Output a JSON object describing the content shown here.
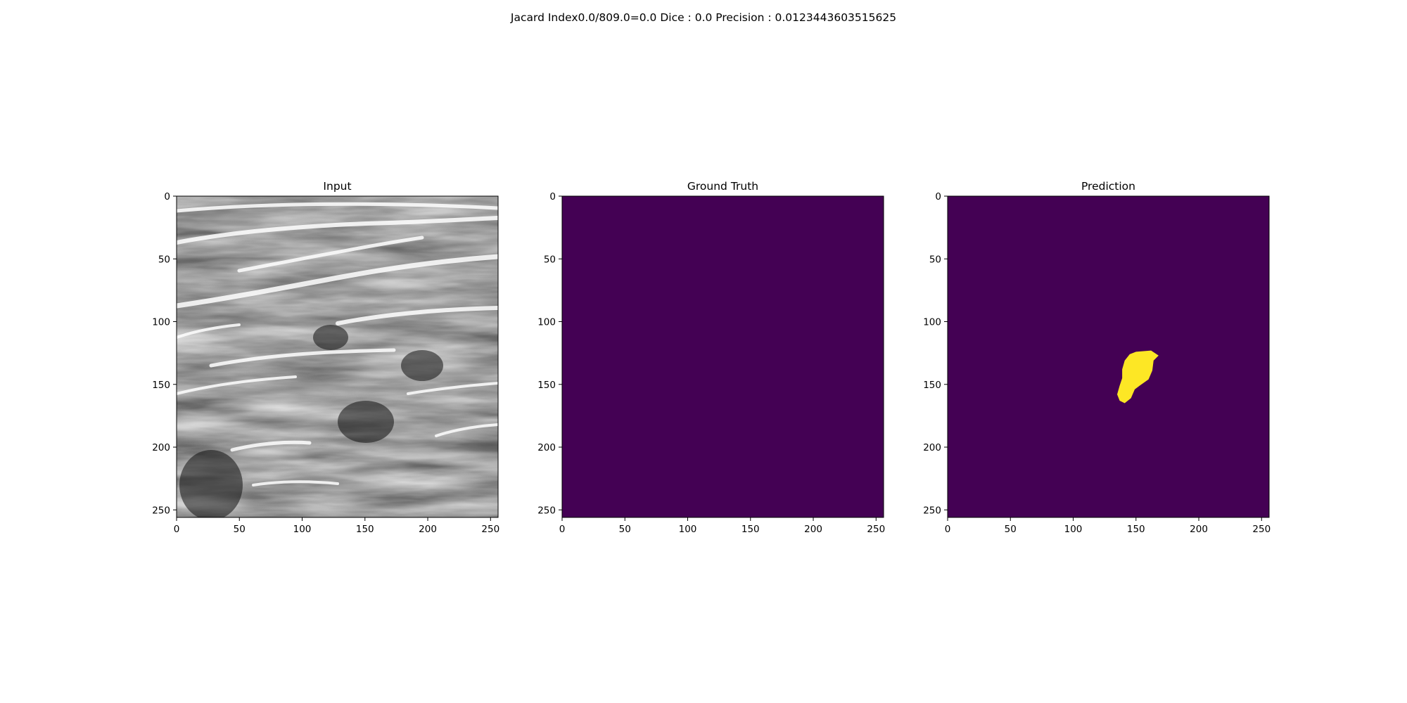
{
  "figure": {
    "suptitle": "Jacard Index0.0/809.0=0.0 Dice : 0.0 Precision : 0.0123443603515625"
  },
  "chart_data": [
    {
      "type": "heatmap",
      "title": "Input",
      "image": "grayscale ultrasound scan",
      "xlim": [
        0,
        256
      ],
      "ylim": [
        256,
        0
      ],
      "xticks": [
        "0",
        "50",
        "100",
        "150",
        "200",
        "250"
      ],
      "yticks": [
        "0",
        "50",
        "100",
        "150",
        "200",
        "250"
      ],
      "colormap": "gray"
    },
    {
      "type": "heatmap",
      "title": "Ground Truth",
      "image": "empty mask",
      "xlim": [
        0,
        256
      ],
      "ylim": [
        256,
        0
      ],
      "xticks": [
        "0",
        "50",
        "100",
        "150",
        "200",
        "250"
      ],
      "yticks": [
        "0",
        "50",
        "100",
        "150",
        "200",
        "250"
      ],
      "background_color": "#440154",
      "foreground_color": "#fde725"
    },
    {
      "type": "heatmap",
      "title": "Prediction",
      "image": "mask with single blob",
      "xlim": [
        0,
        256
      ],
      "ylim": [
        256,
        0
      ],
      "xticks": [
        "0",
        "50",
        "100",
        "150",
        "200",
        "250"
      ],
      "yticks": [
        "0",
        "50",
        "100",
        "150",
        "200",
        "250"
      ],
      "background_color": "#440154",
      "foreground_color": "#fde725",
      "blob_polygon": [
        [
          150,
          124
        ],
        [
          162,
          123
        ],
        [
          168,
          127
        ],
        [
          164,
          131
        ],
        [
          163,
          139
        ],
        [
          160,
          146
        ],
        [
          153,
          151
        ],
        [
          149,
          154
        ],
        [
          146,
          161
        ],
        [
          141,
          165
        ],
        [
          137,
          163
        ],
        [
          135,
          158
        ],
        [
          137,
          151
        ],
        [
          139,
          145
        ],
        [
          139,
          138
        ],
        [
          141,
          131
        ],
        [
          145,
          126
        ]
      ]
    }
  ]
}
